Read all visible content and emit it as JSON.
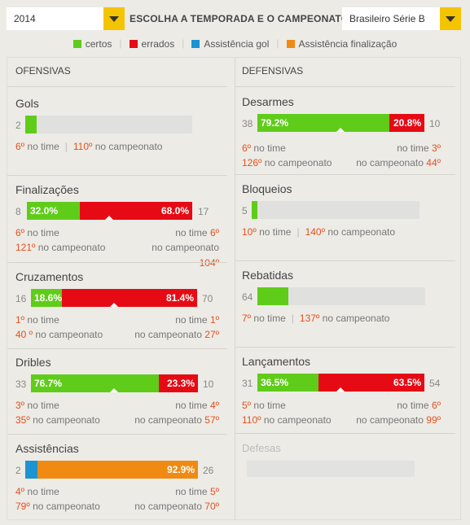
{
  "header": {
    "year": "2014",
    "title": "ESCOLHA A TEMPORADA E O CAMPEONATO",
    "championship": "Brasileiro Série B"
  },
  "legend": [
    {
      "label": "certos",
      "color": "#5fcc1a"
    },
    {
      "label": "errados",
      "color": "#e60a14"
    },
    {
      "label": "Assistência gol",
      "color": "#1b94d1"
    },
    {
      "label": "Assistência finalização",
      "color": "#f08a12"
    }
  ],
  "offensive": {
    "heading": "OFENSIVAS",
    "gols": {
      "name": "Gols",
      "left": "2",
      "time_rank": "6º",
      "camp_rank": "110º",
      "time_label": "no time",
      "camp_label": "no campeonato",
      "fill": 0.05
    },
    "finalizacoes": {
      "name": "Finalizações",
      "left": "8",
      "right": "17",
      "pct_ok": "32.0%",
      "pct_bad": "68.0%",
      "ok": 0.32,
      "time_rank_l": "6º",
      "camp_rank_l": "121º",
      "time_rank_r": "6º",
      "camp_rank_r": "104º",
      "time_label": "no time",
      "camp_label": "no campeonato"
    },
    "cruzamentos": {
      "name": "Cruzamentos",
      "left": "16",
      "right": "70",
      "pct_ok": "18.6%",
      "pct_bad": "81.4%",
      "ok": 0.186,
      "time_rank_l": "1º",
      "camp_rank_l": "40 º",
      "time_rank_r": "1º",
      "camp_rank_r": "27º",
      "time_label": "no time",
      "camp_label": "no campeonato"
    },
    "dribles": {
      "name": "Dribles",
      "left": "33",
      "right": "10",
      "pct_ok": "76.7%",
      "pct_bad": "23.3%",
      "ok": 0.767,
      "time_rank_l": "3º",
      "camp_rank_l": "35º",
      "time_rank_r": "4º",
      "camp_rank_r": "57º",
      "time_label": "no time",
      "camp_label": "no campeonato"
    },
    "assistencias": {
      "name": "Assistências",
      "left": "2",
      "right": "26",
      "pct_orange": "92.9%",
      "blue": 0.071,
      "time_rank_l": "4º",
      "camp_rank_l": "79º",
      "time_rank_r": "5º",
      "camp_rank_r": "70º",
      "time_label": "no time",
      "camp_label": "no campeonato"
    }
  },
  "defensive": {
    "heading": "DEFENSIVAS",
    "desarmes": {
      "name": "Desarmes",
      "left": "38",
      "right": "10",
      "pct_ok": "79.2%",
      "pct_bad": "20.8%",
      "ok": 0.792,
      "time_rank_l": "6º",
      "camp_rank_l": "126º",
      "time_rank_r": "3º",
      "camp_rank_r": "44º",
      "time_label": "no time",
      "camp_label": "no campeonato"
    },
    "bloqueios": {
      "name": "Bloqueios",
      "left": "5",
      "time_rank": "10º",
      "camp_rank": "140º",
      "time_label": "no time",
      "camp_label": "no campeonato",
      "fill": 0.03
    },
    "rebatidas": {
      "name": "Rebatidas",
      "left": "64",
      "time_rank": "7º",
      "camp_rank": "137º",
      "time_label": "no time",
      "camp_label": "no campeonato",
      "fill": 0.19
    },
    "lancamentos": {
      "name": "Lançamentos",
      "left": "31",
      "right": "54",
      "pct_ok": "36.5%",
      "pct_bad": "63.5%",
      "ok": 0.365,
      "time_rank_l": "5º",
      "camp_rank_l": "110º",
      "time_rank_r": "6º",
      "camp_rank_r": "99º",
      "time_label": "no time",
      "camp_label": "no campeonato"
    },
    "defesas": {
      "name": "Defesas"
    }
  }
}
